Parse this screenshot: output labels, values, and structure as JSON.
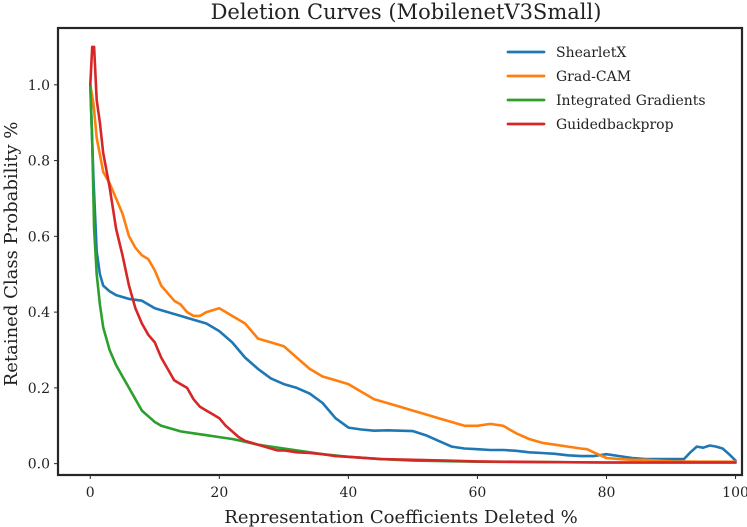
{
  "chart_data": {
    "type": "line",
    "title": "Deletion Curves (MobilenetV3Small)",
    "xlabel": "Representation Coefficients Deleted %",
    "ylabel": "Retained Class Probability %",
    "xlim": [
      -5,
      101
    ],
    "ylim": [
      -0.03,
      1.15
    ],
    "xticks": [
      0,
      20,
      40,
      60,
      80,
      100
    ],
    "yticks": [
      0.0,
      0.2,
      0.4,
      0.6,
      0.8,
      1.0
    ],
    "xtick_labels": [
      "0",
      "20",
      "40",
      "60",
      "80",
      "100"
    ],
    "ytick_labels": [
      "0.0",
      "0.2",
      "0.4",
      "0.6",
      "0.8",
      "1.0"
    ],
    "grid": false,
    "legend_position": "top-right",
    "series": [
      {
        "name": "ShearletX",
        "color": "#1f77b4",
        "x": [
          0,
          0.5,
          1,
          1.5,
          2,
          3,
          4,
          5,
          6,
          8,
          10,
          12,
          14,
          16,
          18,
          20,
          22,
          24,
          26,
          28,
          30,
          32,
          34,
          36,
          38,
          40,
          42,
          44,
          46,
          48,
          50,
          52,
          54,
          56,
          58,
          60,
          62,
          64,
          66,
          68,
          70,
          72,
          74,
          76,
          78,
          80,
          82,
          84,
          86,
          88,
          90,
          92,
          93,
          94,
          95,
          96,
          97,
          98,
          99,
          100
        ],
        "y": [
          1.0,
          0.75,
          0.56,
          0.5,
          0.47,
          0.455,
          0.445,
          0.44,
          0.435,
          0.43,
          0.41,
          0.4,
          0.39,
          0.38,
          0.37,
          0.35,
          0.32,
          0.28,
          0.25,
          0.225,
          0.21,
          0.2,
          0.185,
          0.16,
          0.12,
          0.095,
          0.09,
          0.087,
          0.088,
          0.087,
          0.086,
          0.075,
          0.06,
          0.045,
          0.04,
          0.038,
          0.036,
          0.036,
          0.034,
          0.03,
          0.028,
          0.026,
          0.022,
          0.02,
          0.02,
          0.025,
          0.02,
          0.015,
          0.012,
          0.012,
          0.012,
          0.012,
          0.03,
          0.045,
          0.042,
          0.048,
          0.045,
          0.04,
          0.025,
          0.008
        ]
      },
      {
        "name": "Grad-CAM",
        "color": "#ff7f0e",
        "x": [
          0,
          0.5,
          1,
          2,
          3,
          4,
          5,
          6,
          7,
          8,
          9,
          10,
          11,
          12,
          13,
          14,
          15,
          16,
          17,
          18,
          20,
          22,
          23,
          24,
          25,
          26,
          28,
          30,
          32,
          34,
          36,
          38,
          40,
          42,
          44,
          46,
          48,
          50,
          52,
          54,
          56,
          58,
          60,
          62,
          64,
          66,
          68,
          70,
          72,
          74,
          76,
          77,
          78,
          80,
          82,
          84,
          86,
          88,
          90,
          95,
          100
        ],
        "y": [
          1.0,
          0.95,
          0.86,
          0.77,
          0.74,
          0.7,
          0.66,
          0.6,
          0.57,
          0.55,
          0.54,
          0.51,
          0.47,
          0.45,
          0.43,
          0.42,
          0.4,
          0.39,
          0.39,
          0.4,
          0.41,
          0.39,
          0.38,
          0.37,
          0.35,
          0.33,
          0.32,
          0.31,
          0.28,
          0.25,
          0.23,
          0.22,
          0.21,
          0.19,
          0.17,
          0.16,
          0.15,
          0.14,
          0.13,
          0.12,
          0.11,
          0.1,
          0.1,
          0.105,
          0.1,
          0.08,
          0.065,
          0.055,
          0.05,
          0.045,
          0.04,
          0.038,
          0.03,
          0.015,
          0.012,
          0.01,
          0.01,
          0.008,
          0.006,
          0.005,
          0.005
        ]
      },
      {
        "name": "Integrated Gradients",
        "color": "#2ca02c",
        "x": [
          0,
          0.3,
          0.6,
          1,
          1.5,
          2,
          3,
          4,
          5,
          6,
          7,
          8,
          9,
          10,
          11,
          12,
          13,
          14,
          16,
          18,
          20,
          22,
          24,
          26,
          28,
          30,
          32,
          34,
          36,
          40,
          45,
          50,
          60,
          70,
          80,
          90,
          100
        ],
        "y": [
          1.0,
          0.85,
          0.62,
          0.5,
          0.42,
          0.36,
          0.3,
          0.26,
          0.23,
          0.2,
          0.17,
          0.14,
          0.125,
          0.11,
          0.1,
          0.095,
          0.09,
          0.085,
          0.08,
          0.075,
          0.07,
          0.065,
          0.058,
          0.05,
          0.045,
          0.04,
          0.035,
          0.03,
          0.025,
          0.018,
          0.012,
          0.008,
          0.005,
          0.004,
          0.003,
          0.003,
          0.003
        ]
      },
      {
        "name": "Guidedbackprop",
        "color": "#d62728",
        "x": [
          0,
          0.3,
          0.6,
          1,
          1.5,
          2,
          3,
          4,
          5,
          6,
          7,
          8,
          9,
          10,
          11,
          12,
          13,
          14,
          15,
          16,
          17,
          18,
          19,
          20,
          21,
          22,
          23,
          24,
          25,
          26,
          27,
          28,
          29,
          30,
          32,
          34,
          36,
          38,
          40,
          45,
          50,
          55,
          60,
          70,
          80,
          90,
          100
        ],
        "y": [
          1.0,
          1.1,
          1.1,
          0.96,
          0.9,
          0.82,
          0.73,
          0.62,
          0.55,
          0.47,
          0.41,
          0.37,
          0.34,
          0.32,
          0.28,
          0.25,
          0.22,
          0.21,
          0.2,
          0.17,
          0.15,
          0.14,
          0.13,
          0.12,
          0.1,
          0.085,
          0.07,
          0.06,
          0.055,
          0.05,
          0.045,
          0.04,
          0.035,
          0.035,
          0.03,
          0.028,
          0.025,
          0.02,
          0.018,
          0.012,
          0.01,
          0.008,
          0.006,
          0.004,
          0.003,
          0.003,
          0.003
        ]
      }
    ]
  }
}
